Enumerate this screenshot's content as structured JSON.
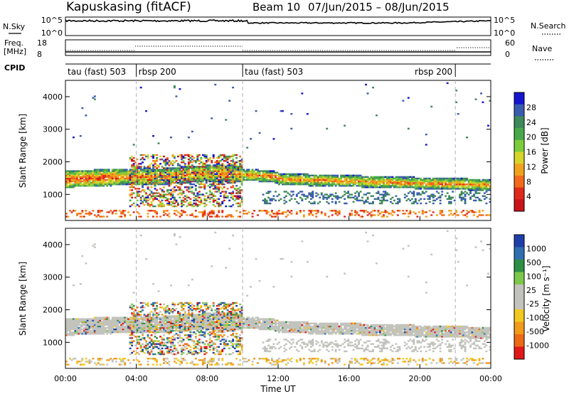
{
  "header": {
    "station": "Kapuskasing (fitACF)",
    "beam": "Beam 10",
    "dates": "07/Jun/2015 – 08/Jun/2015"
  },
  "sky_panel": {
    "label": "N.Sky",
    "tick_top": "10^5",
    "tick_bottom": "10^0",
    "right_top": "10^5",
    "right_bottom": "10^0",
    "right_label": "N.Search"
  },
  "freq_panel": {
    "label_line1": "Freq.",
    "label_line2": "[MHz]",
    "tick_top": "18",
    "tick_bottom": "8",
    "right_top": "60",
    "right_bottom": "0",
    "right_label": "Nave"
  },
  "cpid": {
    "label": "CPID",
    "segments": [
      {
        "label": "tau (fast) 503",
        "start_hour": 0,
        "end_hour": 4.0
      },
      {
        "label": "rbsp 200",
        "start_hour": 4.0,
        "end_hour": 10.0
      },
      {
        "label": "tau (fast) 503",
        "start_hour": 10.0,
        "end_hour": 22.0
      },
      {
        "label": "rbsp 200",
        "start_hour": 22.0,
        "end_hour": 24.0
      }
    ]
  },
  "colors": {
    "power": [
      "#1515d0",
      "#3a5cb0",
      "#3f8a5a",
      "#49a84a",
      "#7ccc3c",
      "#d7d52a",
      "#f0a21e",
      "#f26a1a",
      "#e02a1a",
      "#c8141a"
    ],
    "velocity": [
      "#e01818",
      "#ec6a14",
      "#f29a1a",
      "#f2c91e",
      "#c3c3bd",
      "#c3c3bd",
      "#7cc84a",
      "#2e8f45",
      "#2f6fb0",
      "#1e3fa8"
    ]
  },
  "chart_data": [
    {
      "type": "heatmap",
      "title": "Power",
      "ylabel": "Slant Range [km]",
      "ylim": [
        200,
        4500
      ],
      "yticks": [
        "1000",
        "2000",
        "3000",
        "4000"
      ],
      "xlim_hours": [
        0,
        24
      ],
      "colorbar": {
        "label": "Power [dB]",
        "ticks": [
          "4",
          "8",
          "12",
          "16",
          "20",
          "24",
          "28"
        ],
        "range": [
          0,
          30
        ]
      }
    },
    {
      "type": "heatmap",
      "title": "Velocity",
      "ylabel": "Slant Range [km]",
      "xlabel": "Time UT",
      "ylim": [
        200,
        4500
      ],
      "yticks": [
        "1000",
        "2000",
        "3000",
        "4000"
      ],
      "xticks": [
        "00:00",
        "04:00",
        "08:00",
        "12:00",
        "16:00",
        "20:00",
        "00:00"
      ],
      "xlim_hours": [
        0,
        24
      ],
      "colorbar": {
        "label": "Velocity [m s⁻¹]",
        "ticks": [
          "1000",
          "500",
          "100",
          "25",
          "-25",
          "-100",
          "-500",
          "-1000"
        ]
      }
    }
  ]
}
